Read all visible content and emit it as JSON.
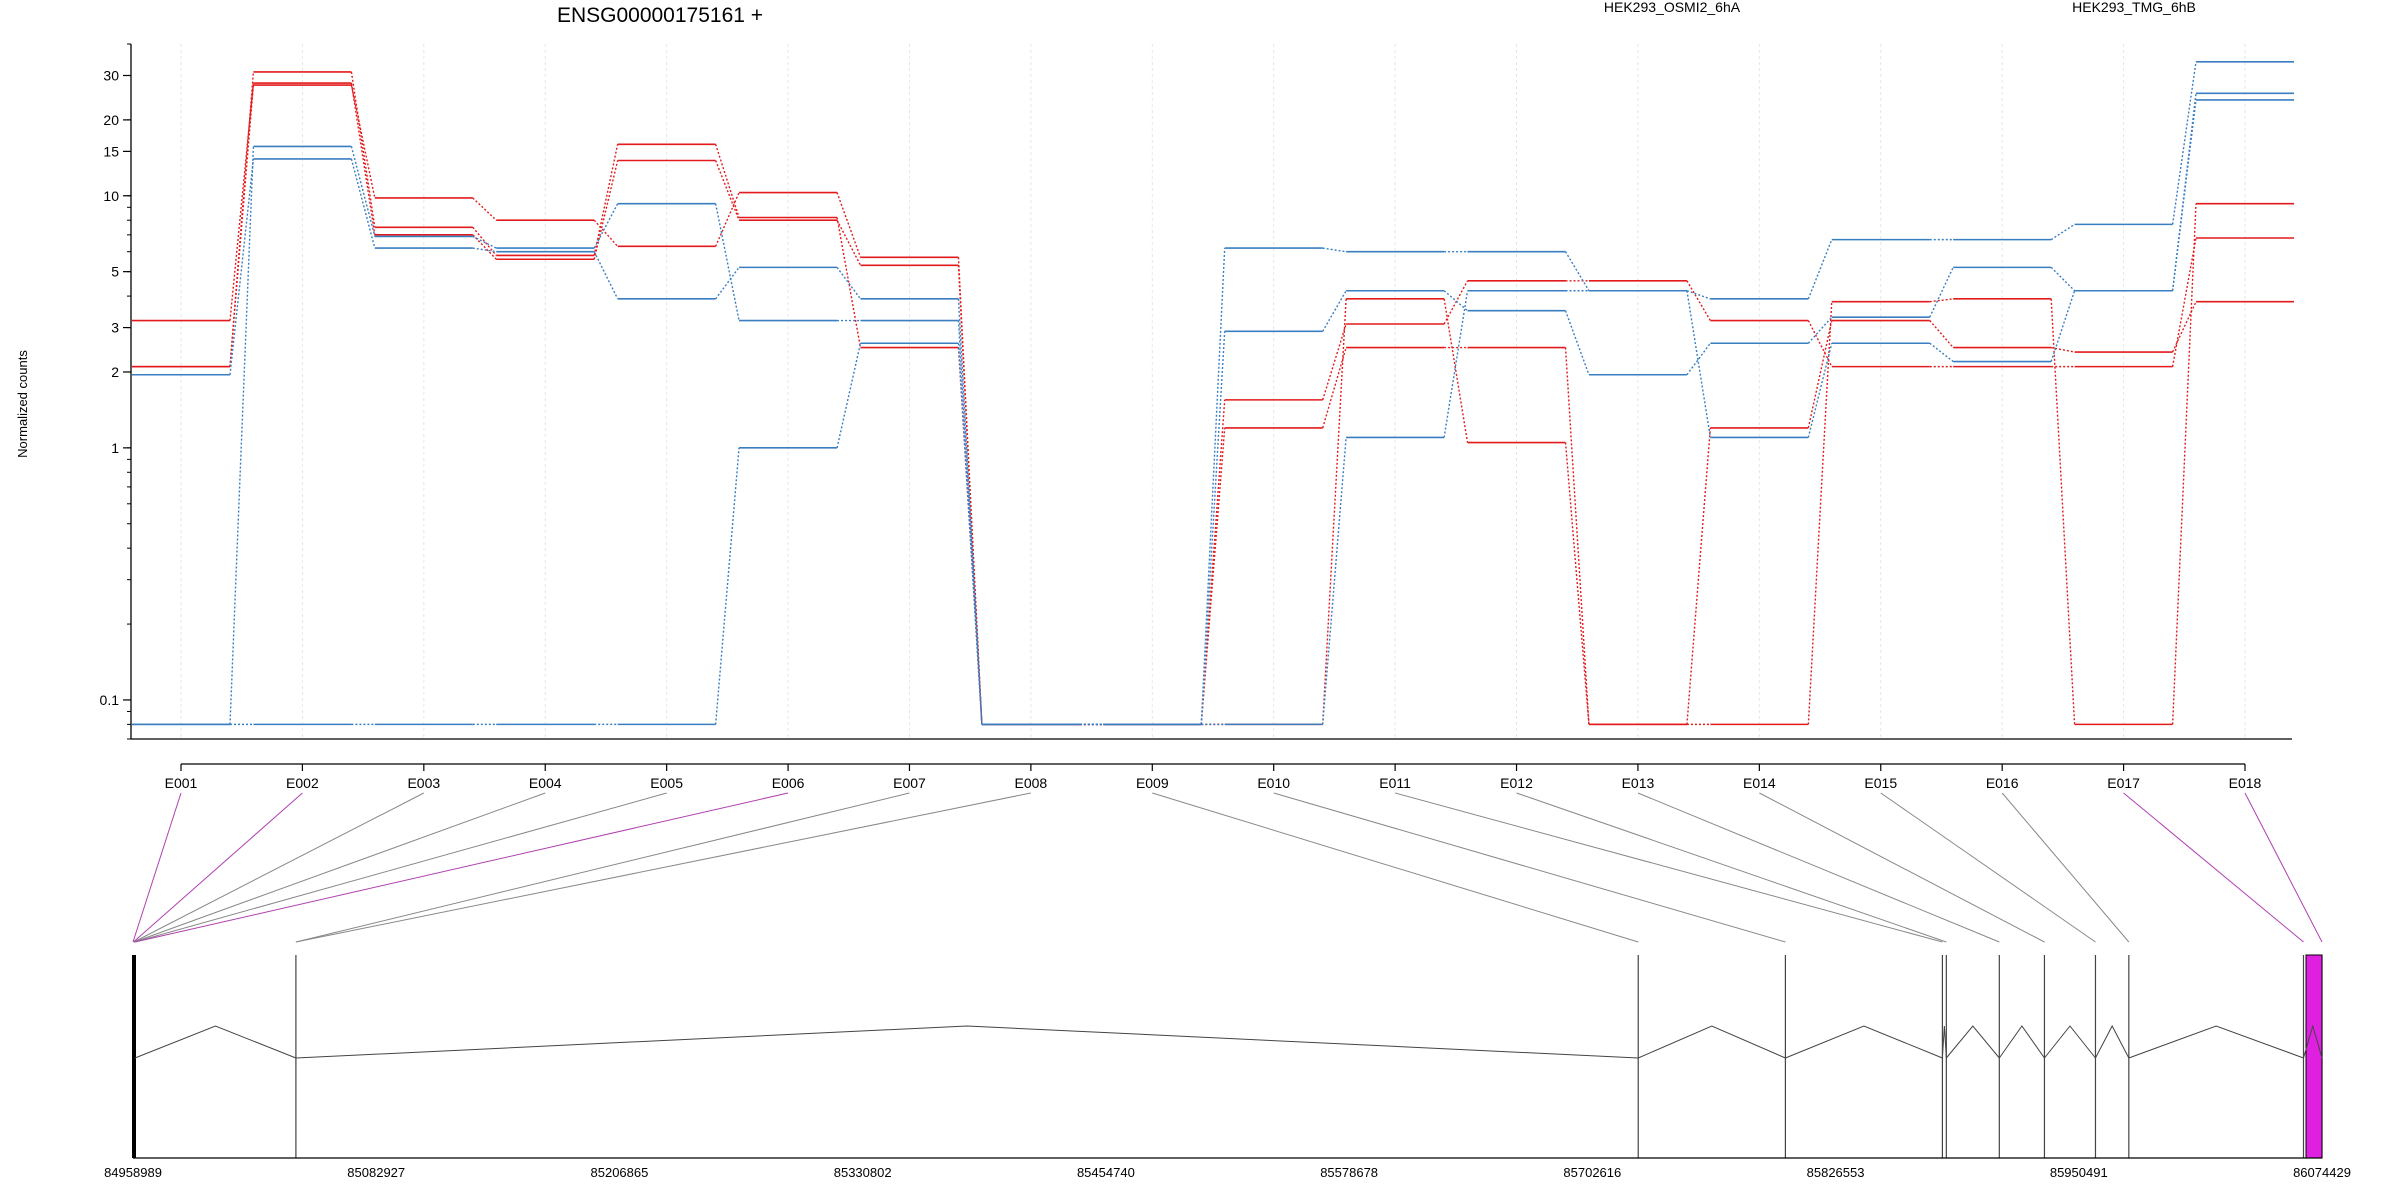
{
  "chart_data": {
    "type": "line",
    "title": "ENSG00000175161 +",
    "ylabel": "Normalized counts",
    "yscale": "log",
    "ylim": [
      0.07,
      40
    ],
    "yticks": [
      0.1,
      1,
      2,
      3,
      5,
      10,
      15,
      20,
      30
    ],
    "ytick_labels": [
      "0.1",
      "1",
      "2",
      "3",
      "5",
      "10",
      "15",
      "20",
      "30"
    ],
    "grid": "vertical",
    "legend_position": "top",
    "categories": [
      "E001",
      "E002",
      "E003",
      "E004",
      "E005",
      "E006",
      "E007",
      "E008",
      "E009",
      "E010",
      "E011",
      "E012",
      "E013",
      "E014",
      "E015",
      "E016",
      "E017",
      "E018"
    ],
    "groups": [
      {
        "label": "HEK293_OSMI2_6hA",
        "color": "#e31a1c"
      },
      {
        "label": "HEK293_TMG_6hB",
        "color": "#3a7ec2"
      }
    ],
    "series": [
      {
        "group": 0,
        "color": "#e31a1c",
        "values": [
          3.2,
          28,
          7.0,
          5.6,
          13.8,
          8.0,
          5.3,
          0.08,
          0.08,
          1.55,
          3.1,
          4.6,
          4.6,
          3.2,
          2.1,
          2.1,
          2.1,
          6.8
        ]
      },
      {
        "group": 0,
        "color": "#e31a1c",
        "values": [
          2.1,
          27.5,
          9.8,
          8.0,
          6.3,
          10.3,
          5.7,
          0.08,
          0.08,
          1.2,
          2.5,
          2.5,
          0.08,
          1.2,
          3.2,
          2.5,
          2.4,
          3.8
        ]
      },
      {
        "group": 0,
        "color": "#e31a1c",
        "values": [
          2.1,
          31,
          7.5,
          5.8,
          16,
          8.2,
          2.5,
          0.08,
          0.08,
          0.08,
          3.9,
          1.05,
          0.08,
          0.08,
          3.8,
          3.9,
          0.08,
          9.3
        ]
      },
      {
        "group": 1,
        "color": "#3a7ec2",
        "values": [
          1.95,
          14,
          6.2,
          6.0,
          3.9,
          5.2,
          3.9,
          0.08,
          0.08,
          6.2,
          6.0,
          6.0,
          4.2,
          3.9,
          6.7,
          6.7,
          7.7,
          34
        ]
      },
      {
        "group": 1,
        "color": "#3a7ec2",
        "values": [
          0.08,
          15.7,
          6.9,
          6.2,
          9.3,
          3.2,
          3.2,
          0.08,
          0.08,
          2.9,
          4.2,
          3.5,
          1.95,
          2.6,
          3.3,
          5.2,
          4.2,
          25.5
        ]
      },
      {
        "group": 1,
        "color": "#3a7ec2",
        "values": [
          0.08,
          0.08,
          0.08,
          0.08,
          0.08,
          1.0,
          2.6,
          0.08,
          0.08,
          0.08,
          1.1,
          4.2,
          4.2,
          1.1,
          2.6,
          2.2,
          4.2,
          24
        ]
      }
    ],
    "genome_axis": {
      "ticks": [
        84958989,
        85082927,
        85206865,
        85330802,
        85454740,
        85578678,
        85702616,
        85826553,
        85950491,
        86074429
      ],
      "tick_labels": [
        "84958989",
        "85082927",
        "85206865",
        "85330802",
        "85454740",
        "85578678",
        "85702616",
        "85826553",
        "85950491",
        "86074429"
      ],
      "range": [
        84958989,
        86074429
      ],
      "exon_positions": [
        84958989,
        84959200,
        84959400,
        84959600,
        84959800,
        84960000,
        85042000,
        85042000,
        85726000,
        85801000,
        85881000,
        85883000,
        85910000,
        85933000,
        85959000,
        85976000,
        86065000,
        86074429
      ],
      "feature_color": "#e020e0",
      "link_color_default": "#888888",
      "link_color_highlight": "#b040b0"
    }
  }
}
